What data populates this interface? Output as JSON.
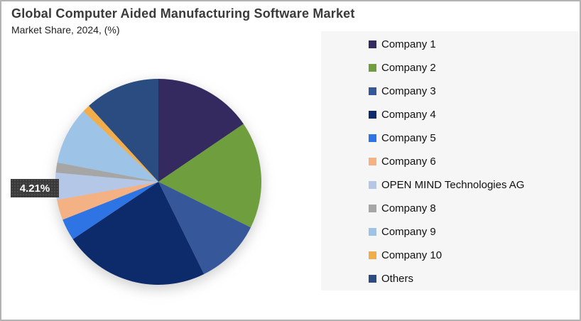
{
  "header": {
    "title": "Global Computer Aided Manufacturing Software Market",
    "subtitle": "Market Share, 2024, (%)"
  },
  "chart_data": {
    "type": "pie",
    "title": "Global Computer Aided Manufacturing Software Market",
    "subtitle": "Market Share, 2024, (%)",
    "unit": "%",
    "legend_position": "right",
    "start_angle_deg": 0,
    "direction": "clockwise",
    "labels": [
      "Company 1",
      "Company 2",
      "Company 3",
      "Company 4",
      "Company 5",
      "Company 6",
      "OPEN MIND Technologies AG",
      "Company 8",
      "Company 9",
      "Company 10",
      "Others"
    ],
    "values": [
      15.5,
      16.8,
      10.4,
      22.9,
      3.4,
      3.2,
      4.21,
      1.6,
      9.0,
      1.2,
      11.79
    ],
    "colors": [
      "#342a60",
      "#6f9e3f",
      "#36589b",
      "#0d2a6b",
      "#2e74e4",
      "#f4b183",
      "#b4c7e7",
      "#a6a6a6",
      "#9dc3e6",
      "#f0ad49",
      "#2a4c80"
    ],
    "annotations": [
      {
        "text": "4.21%",
        "slice": "OPEN MIND Technologies AG"
      }
    ]
  },
  "style": {
    "legend_panel_bg": "#f6f6f6",
    "callout_bg": "#3a3a3a",
    "callout_text_color": "#ffffff",
    "border_color": "#b3b3b3"
  }
}
